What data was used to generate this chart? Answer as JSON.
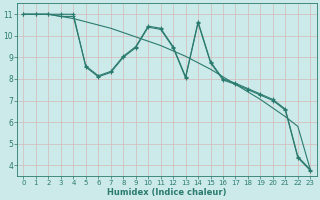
{
  "xlabel": "Humidex (Indice chaleur)",
  "bg_color": "#cceaea",
  "grid_color": "#d4b8b8",
  "line_color": "#2b7b6f",
  "xlim_min": -0.5,
  "xlim_max": 23.5,
  "ylim_min": 3.5,
  "ylim_max": 11.5,
  "xticks": [
    0,
    1,
    2,
    3,
    4,
    5,
    6,
    7,
    8,
    9,
    10,
    11,
    12,
    13,
    14,
    15,
    16,
    17,
    18,
    19,
    20,
    21,
    22,
    23
  ],
  "yticks": [
    4,
    5,
    6,
    7,
    8,
    9,
    10,
    11
  ],
  "line_straight": {
    "x": [
      0,
      1,
      2,
      3,
      4,
      5,
      6,
      7,
      8,
      9,
      10,
      11,
      12,
      13,
      14,
      15,
      16,
      17,
      18,
      19,
      20,
      21,
      22,
      23
    ],
    "y": [
      11.0,
      11.0,
      11.0,
      10.9,
      10.8,
      10.65,
      10.5,
      10.35,
      10.15,
      9.95,
      9.75,
      9.55,
      9.3,
      9.05,
      8.75,
      8.45,
      8.1,
      7.75,
      7.4,
      7.05,
      6.65,
      6.25,
      5.8,
      3.8
    ]
  },
  "line_zigzag1": {
    "x": [
      0,
      1,
      2,
      3,
      4,
      5,
      6,
      7,
      8,
      9,
      10,
      11,
      12,
      13,
      14,
      15,
      16,
      17,
      18,
      19,
      20,
      21,
      22,
      23
    ],
    "y": [
      11.0,
      11.0,
      11.0,
      10.9,
      10.9,
      8.6,
      8.15,
      8.35,
      9.05,
      9.5,
      10.45,
      10.35,
      9.5,
      8.1,
      10.65,
      8.8,
      8.0,
      7.8,
      7.55,
      7.3,
      7.05,
      6.6,
      4.4,
      3.8
    ]
  },
  "line_zigzag2": {
    "x": [
      0,
      1,
      2,
      3,
      4,
      5,
      6,
      7,
      8,
      9,
      10,
      11,
      12,
      13,
      14,
      15,
      16,
      17,
      18,
      19,
      20,
      21,
      22,
      23
    ],
    "y": [
      11.0,
      11.0,
      11.0,
      11.0,
      11.0,
      8.55,
      8.1,
      8.3,
      9.0,
      9.45,
      10.4,
      10.3,
      9.45,
      8.05,
      10.6,
      8.75,
      7.95,
      7.75,
      7.5,
      7.25,
      7.0,
      6.55,
      4.35,
      3.75
    ]
  },
  "xlabel_fontsize": 6,
  "tick_fontsize": 5,
  "linewidth": 0.8,
  "marker_size": 3
}
